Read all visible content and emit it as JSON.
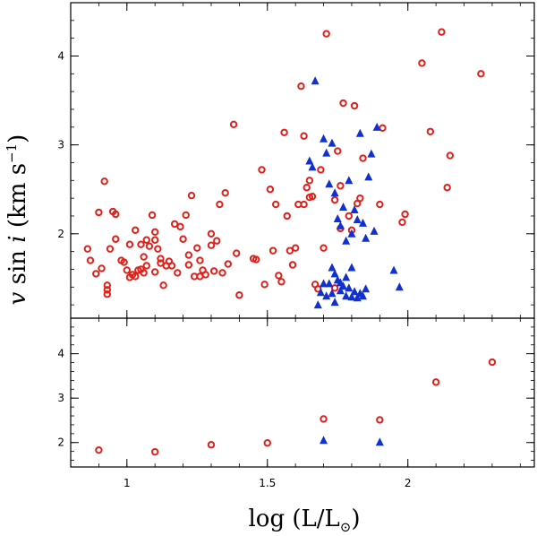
{
  "chart_data": {
    "type": "scatter",
    "xlabel_parts": {
      "pre": "log (L/L",
      "sun": "⊙",
      "post": ")"
    },
    "ylabel_parts": {
      "v": "v",
      "sini": "sin",
      "i": "i",
      "units": "(km s",
      "exp": "−1",
      "close": ")"
    },
    "xlim": [
      0.8,
      2.45
    ],
    "x_ticks": [
      "1",
      "1.5",
      "2"
    ],
    "x_tick_values": [
      1,
      1.5,
      2
    ],
    "colors": {
      "circle": "#e0201b",
      "triangle": "#1030d0",
      "axis": "#000000"
    },
    "panels": [
      {
        "name": "top",
        "ylim": [
          1.05,
          4.6
        ],
        "y_ticks": [
          "2",
          "3",
          "4"
        ],
        "y_tick_values": [
          2,
          3,
          4
        ],
        "series": [
          {
            "name": "circles",
            "marker": "open-circle",
            "points": [
              [
                0.86,
                1.83
              ],
              [
                0.87,
                1.7
              ],
              [
                0.89,
                1.55
              ],
              [
                0.9,
                2.24
              ],
              [
                0.91,
                1.61
              ],
              [
                0.92,
                2.59
              ],
              [
                0.93,
                1.42
              ],
              [
                0.93,
                1.37
              ],
              [
                0.93,
                1.32
              ],
              [
                0.94,
                1.83
              ],
              [
                0.95,
                2.25
              ],
              [
                0.96,
                2.22
              ],
              [
                0.96,
                1.94
              ],
              [
                0.98,
                1.7
              ],
              [
                0.99,
                1.68
              ],
              [
                1.0,
                1.59
              ],
              [
                1.01,
                1.88
              ],
              [
                1.01,
                1.51
              ],
              [
                1.02,
                1.54
              ],
              [
                1.03,
                2.04
              ],
              [
                1.03,
                1.52
              ],
              [
                1.04,
                1.59
              ],
              [
                1.05,
                1.88
              ],
              [
                1.05,
                1.6
              ],
              [
                1.06,
                1.74
              ],
              [
                1.06,
                1.56
              ],
              [
                1.07,
                1.93
              ],
              [
                1.07,
                1.64
              ],
              [
                1.08,
                1.86
              ],
              [
                1.09,
                2.21
              ],
              [
                1.1,
                2.02
              ],
              [
                1.1,
                1.93
              ],
              [
                1.1,
                1.57
              ],
              [
                1.11,
                1.83
              ],
              [
                1.12,
                1.72
              ],
              [
                1.12,
                1.67
              ],
              [
                1.13,
                1.42
              ],
              [
                1.14,
                1.64
              ],
              [
                1.15,
                1.69
              ],
              [
                1.16,
                1.64
              ],
              [
                1.17,
                2.11
              ],
              [
                1.18,
                1.56
              ],
              [
                1.19,
                2.08
              ],
              [
                1.2,
                1.94
              ],
              [
                1.21,
                2.21
              ],
              [
                1.22,
                1.76
              ],
              [
                1.22,
                1.65
              ],
              [
                1.23,
                2.43
              ],
              [
                1.24,
                1.52
              ],
              [
                1.25,
                1.84
              ],
              [
                1.26,
                1.7
              ],
              [
                1.26,
                1.52
              ],
              [
                1.27,
                1.59
              ],
              [
                1.28,
                1.54
              ],
              [
                1.3,
                2.0
              ],
              [
                1.3,
                1.87
              ],
              [
                1.31,
                1.58
              ],
              [
                1.32,
                1.92
              ],
              [
                1.33,
                2.33
              ],
              [
                1.34,
                1.56
              ],
              [
                1.35,
                2.46
              ],
              [
                1.36,
                1.66
              ],
              [
                1.38,
                3.23
              ],
              [
                1.39,
                1.78
              ],
              [
                1.4,
                1.31
              ],
              [
                1.45,
                1.72
              ],
              [
                1.46,
                1.71
              ],
              [
                1.48,
                2.72
              ],
              [
                1.49,
                1.43
              ],
              [
                1.51,
                2.5
              ],
              [
                1.52,
                1.81
              ],
              [
                1.53,
                2.33
              ],
              [
                1.54,
                1.53
              ],
              [
                1.55,
                1.46
              ],
              [
                1.56,
                3.14
              ],
              [
                1.57,
                2.2
              ],
              [
                1.58,
                1.81
              ],
              [
                1.59,
                1.65
              ],
              [
                1.6,
                1.84
              ],
              [
                1.61,
                2.33
              ],
              [
                1.62,
                3.66
              ],
              [
                1.63,
                3.1
              ],
              [
                1.63,
                2.33
              ],
              [
                1.64,
                2.52
              ],
              [
                1.65,
                2.6
              ],
              [
                1.65,
                2.41
              ],
              [
                1.66,
                2.42
              ],
              [
                1.67,
                1.43
              ],
              [
                1.68,
                1.38
              ],
              [
                1.69,
                2.72
              ],
              [
                1.7,
                1.84
              ],
              [
                1.71,
                4.25
              ],
              [
                1.74,
                2.38
              ],
              [
                1.74,
                1.39
              ],
              [
                1.75,
                2.93
              ],
              [
                1.76,
                2.54
              ],
              [
                1.76,
                2.06
              ],
              [
                1.77,
                3.47
              ],
              [
                1.79,
                2.2
              ],
              [
                1.8,
                2.04
              ],
              [
                1.81,
                3.44
              ],
              [
                1.82,
                2.34
              ],
              [
                1.83,
                2.4
              ],
              [
                1.84,
                2.85
              ],
              [
                1.9,
                2.33
              ],
              [
                1.91,
                3.19
              ],
              [
                1.98,
                2.13
              ],
              [
                1.99,
                2.22
              ],
              [
                2.05,
                3.92
              ],
              [
                2.08,
                3.15
              ],
              [
                2.12,
                4.27
              ],
              [
                2.14,
                2.52
              ],
              [
                2.15,
                2.88
              ],
              [
                2.26,
                3.8
              ]
            ]
          },
          {
            "name": "triangles",
            "marker": "filled-triangle",
            "points": [
              [
                1.67,
                3.72
              ],
              [
                1.65,
                2.82
              ],
              [
                1.66,
                2.75
              ],
              [
                1.7,
                3.07
              ],
              [
                1.71,
                2.91
              ],
              [
                1.72,
                2.56
              ],
              [
                1.73,
                3.02
              ],
              [
                1.74,
                2.46
              ],
              [
                1.75,
                2.17
              ],
              [
                1.76,
                2.09
              ],
              [
                1.77,
                2.3
              ],
              [
                1.78,
                1.92
              ],
              [
                1.79,
                2.6
              ],
              [
                1.8,
                2.0
              ],
              [
                1.81,
                2.27
              ],
              [
                1.82,
                2.16
              ],
              [
                1.83,
                3.13
              ],
              [
                1.84,
                2.12
              ],
              [
                1.85,
                1.95
              ],
              [
                1.86,
                2.64
              ],
              [
                1.87,
                2.9
              ],
              [
                1.88,
                2.03
              ],
              [
                1.89,
                3.2
              ],
              [
                1.73,
                1.62
              ],
              [
                1.74,
                1.55
              ],
              [
                1.75,
                1.48
              ],
              [
                1.76,
                1.45
              ],
              [
                1.77,
                1.41
              ],
              [
                1.78,
                1.51
              ],
              [
                1.79,
                1.39
              ],
              [
                1.8,
                1.62
              ],
              [
                1.81,
                1.35
              ],
              [
                1.83,
                1.33
              ],
              [
                1.85,
                1.38
              ],
              [
                1.68,
                1.2
              ],
              [
                1.69,
                1.34
              ],
              [
                1.7,
                1.44
              ],
              [
                1.71,
                1.3
              ],
              [
                1.72,
                1.44
              ],
              [
                1.73,
                1.33
              ],
              [
                1.74,
                1.23
              ],
              [
                1.76,
                1.36
              ],
              [
                1.78,
                1.3
              ],
              [
                1.8,
                1.29
              ],
              [
                1.82,
                1.28
              ],
              [
                1.84,
                1.3
              ],
              [
                1.95,
                1.59
              ],
              [
                1.97,
                1.4
              ]
            ]
          }
        ]
      },
      {
        "name": "bottom",
        "ylim": [
          1.45,
          4.8
        ],
        "y_ticks": [
          "2",
          "3",
          "4"
        ],
        "y_tick_values": [
          2,
          3,
          4
        ],
        "series": [
          {
            "name": "circles",
            "marker": "open-circle",
            "points": [
              [
                0.9,
                1.83
              ],
              [
                1.1,
                1.79
              ],
              [
                1.3,
                1.95
              ],
              [
                1.5,
                1.99
              ],
              [
                1.7,
                2.53
              ],
              [
                1.9,
                2.51
              ],
              [
                2.1,
                3.36
              ],
              [
                2.3,
                3.81
              ]
            ]
          },
          {
            "name": "triangles",
            "marker": "filled-triangle",
            "points": [
              [
                1.7,
                2.05
              ],
              [
                1.9,
                2.01
              ]
            ]
          }
        ]
      }
    ]
  }
}
